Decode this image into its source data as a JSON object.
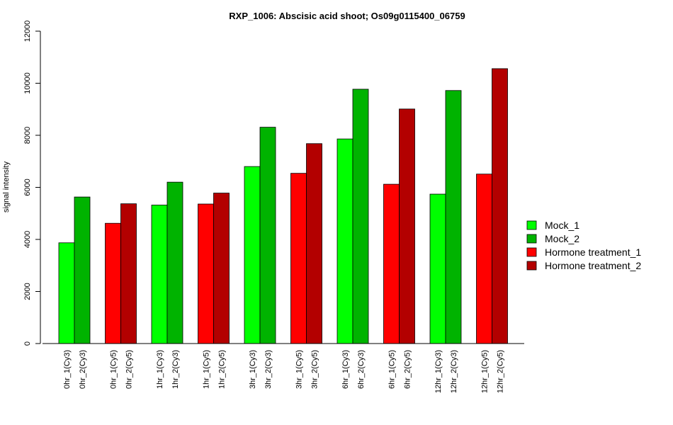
{
  "chart_data": {
    "type": "bar",
    "title": "RXP_1006: Abscisic acid shoot; Os09g0115400_06759",
    "xlabel": "",
    "ylabel": "signal intensity",
    "ylim": [
      0,
      12000
    ],
    "yticks": [
      0,
      2000,
      4000,
      6000,
      8000,
      10000,
      12000
    ],
    "grid": false,
    "legend_position": "right",
    "series": [
      {
        "name": "Mock_1",
        "color": "#00ff00"
      },
      {
        "name": "Mock_2",
        "color": "#00b300"
      },
      {
        "name": "Hormone treatment_1",
        "color": "#ff0000"
      },
      {
        "name": "Hormone treatment_2",
        "color": "#b30000"
      }
    ],
    "bars": [
      {
        "label": "0hr_1(Cy3)",
        "value": 3870,
        "series": 0
      },
      {
        "label": "0hr_2(Cy3)",
        "value": 5630,
        "series": 1
      },
      {
        "label": "0hr_1(Cy5)",
        "value": 4620,
        "series": 2
      },
      {
        "label": "0hr_2(Cy5)",
        "value": 5370,
        "series": 3
      },
      {
        "label": "1hr_1(Cy3)",
        "value": 5320,
        "series": 0
      },
      {
        "label": "1hr_2(Cy3)",
        "value": 6200,
        "series": 1
      },
      {
        "label": "1hr_1(Cy5)",
        "value": 5360,
        "series": 2
      },
      {
        "label": "1hr_2(Cy5)",
        "value": 5780,
        "series": 3
      },
      {
        "label": "3hr_1(Cy3)",
        "value": 6800,
        "series": 0
      },
      {
        "label": "3hr_2(Cy3)",
        "value": 8310,
        "series": 1
      },
      {
        "label": "3hr_1(Cy5)",
        "value": 6540,
        "series": 2
      },
      {
        "label": "3hr_2(Cy5)",
        "value": 7680,
        "series": 3
      },
      {
        "label": "6hr_1(Cy3)",
        "value": 7860,
        "series": 0
      },
      {
        "label": "6hr_2(Cy3)",
        "value": 9770,
        "series": 1
      },
      {
        "label": "6hr_1(Cy5)",
        "value": 6120,
        "series": 2
      },
      {
        "label": "6hr_2(Cy5)",
        "value": 9010,
        "series": 3
      },
      {
        "label": "12hr_1(Cy3)",
        "value": 5740,
        "series": 0
      },
      {
        "label": "12hr_2(Cy3)",
        "value": 9720,
        "series": 1
      },
      {
        "label": "12hr_1(Cy5)",
        "value": 6510,
        "series": 2
      },
      {
        "label": "12hr_2(Cy5)",
        "value": 10560,
        "series": 3
      }
    ]
  }
}
